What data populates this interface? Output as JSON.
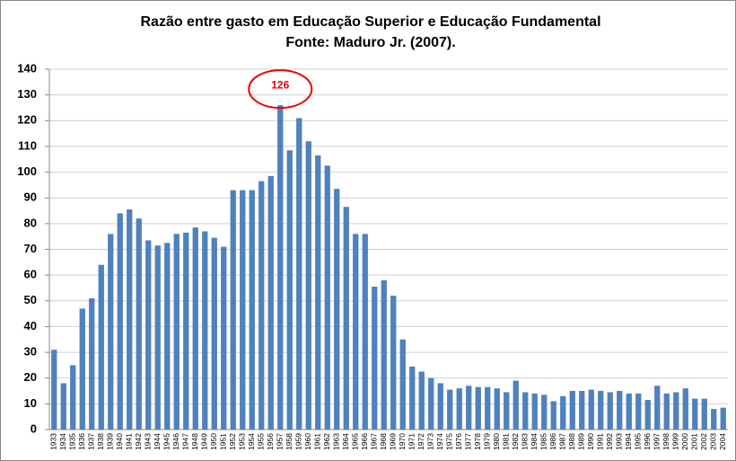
{
  "chart_data": {
    "type": "bar",
    "title": "Razão entre gasto em Educação Superior e Educação Fundamental",
    "subtitle": "Fonte:  Maduro Jr. (2007).",
    "annotation": "126",
    "categories": [
      "1933",
      "1934",
      "1935",
      "1936",
      "1937",
      "1938",
      "1939",
      "1940",
      "1941",
      "1942",
      "1943",
      "1944",
      "1945",
      "1946",
      "1947",
      "1948",
      "1949",
      "1950",
      "1951",
      "1952",
      "1953",
      "1954",
      "1955",
      "1956",
      "1957",
      "1958",
      "1959",
      "1960",
      "1961",
      "1962",
      "1963",
      "1964",
      "1965",
      "1966",
      "1967",
      "1968",
      "1969",
      "1970",
      "1971",
      "1972",
      "1973",
      "1974",
      "1975",
      "1976",
      "1977",
      "1978",
      "1979",
      "1980",
      "1981",
      "1982",
      "1983",
      "1984",
      "1985",
      "1986",
      "1987",
      "1988",
      "1989",
      "1990",
      "1991",
      "1992",
      "1993",
      "1994",
      "1995",
      "1996",
      "1997",
      "1998",
      "1999",
      "2000",
      "2001",
      "2002",
      "2003",
      "2004"
    ],
    "values": [
      31,
      18,
      25,
      47,
      51,
      64,
      76,
      84,
      85.5,
      82,
      73.5,
      71.5,
      72.5,
      76,
      76.5,
      78.5,
      77,
      74.5,
      71,
      93,
      93,
      93,
      96.5,
      98.5,
      126,
      108.5,
      121,
      112,
      106.5,
      102.5,
      93.5,
      86.5,
      76,
      76,
      55.5,
      58,
      52,
      35,
      24.5,
      22.5,
      20,
      18,
      15.5,
      16,
      17,
      16.5,
      16.5,
      16,
      14.5,
      19,
      14.5,
      14,
      13.5,
      11,
      13,
      15,
      15,
      15.5,
      15,
      14.5,
      15,
      14,
      14,
      11.5,
      17,
      14,
      14.5,
      16,
      12,
      12,
      8,
      8.5
    ],
    "color": "#4f81bd",
    "ylim": [
      0,
      140
    ],
    "yticks": [
      0,
      10,
      20,
      30,
      40,
      50,
      60,
      70,
      80,
      90,
      100,
      110,
      120,
      130,
      140
    ],
    "grid": true
  }
}
